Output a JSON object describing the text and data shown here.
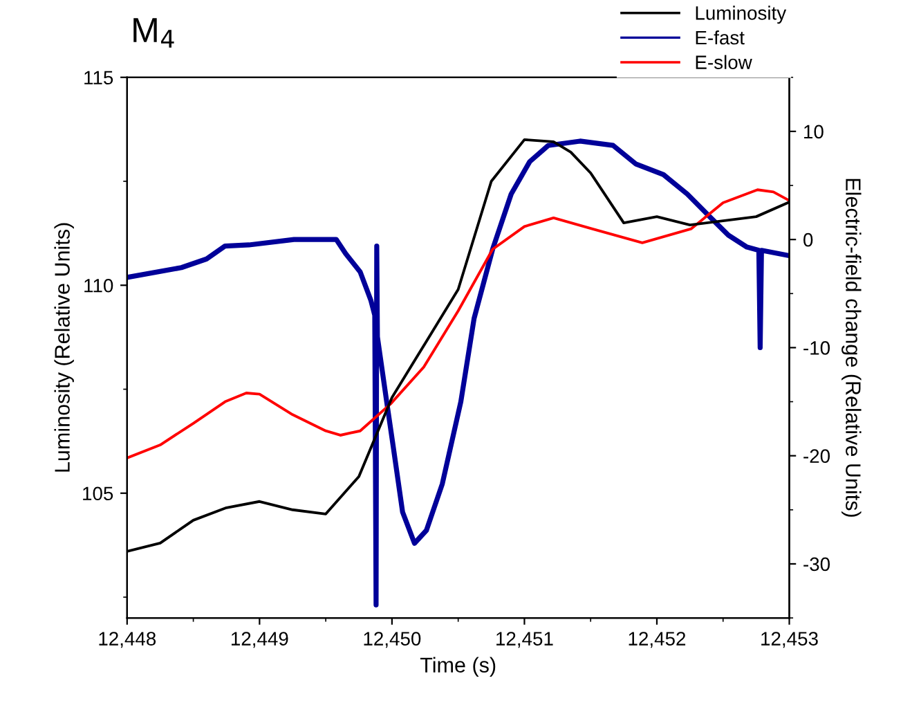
{
  "chart_data": {
    "type": "line",
    "title": "M$_{4}$",
    "xlabel": "Time (s)",
    "ylabel": "Luminosity (Relative Units)",
    "y2label": "Electric-field change (Relative Units)",
    "xlim": [
      12448,
      12453
    ],
    "xticks": [
      {
        "value": 12448,
        "label": "12,448"
      },
      {
        "value": 12449,
        "label": "12,449"
      },
      {
        "value": 12450,
        "label": "12,450"
      },
      {
        "value": 12451,
        "label": "12,451"
      },
      {
        "value": 12452,
        "label": "12,452"
      },
      {
        "value": 12453,
        "label": "12,453"
      }
    ],
    "ylim": [
      102,
      115
    ],
    "yticks": [
      105,
      110,
      115
    ],
    "y2lim": [
      -35,
      15
    ],
    "y2ticks": [
      -30,
      -20,
      -10,
      0,
      10
    ],
    "grid": false,
    "legend": "top right",
    "marker": "none",
    "line_style": "solid",
    "series": [
      {
        "name": "Luminosity",
        "color": "#000000",
        "axis": "y",
        "x": [
          12448.0,
          12448.25,
          12448.5,
          12448.75,
          12449.0,
          12449.25,
          12449.5,
          12449.75,
          12450.0,
          12450.25,
          12450.5,
          12450.75,
          12451.0,
          12451.22,
          12451.35,
          12451.5,
          12451.75,
          12452.0,
          12452.25,
          12452.5,
          12452.75,
          12453.0
        ],
        "values": [
          103.6,
          103.8,
          104.35,
          104.65,
          104.8,
          104.6,
          104.5,
          105.4,
          107.3,
          108.6,
          109.9,
          112.5,
          113.5,
          113.45,
          113.2,
          112.7,
          111.5,
          111.65,
          111.45,
          111.55,
          111.65,
          112.0
        ]
      },
      {
        "name": "E-fast",
        "color": "#000099",
        "axis": "y2",
        "x": [
          12448.0,
          12448.41,
          12448.6,
          12448.74,
          12448.92,
          12449.26,
          12449.58,
          12449.65,
          12449.76,
          12449.84,
          12449.87,
          12449.88,
          12449.885,
          12449.89,
          12449.96,
          12450.01,
          12450.08,
          12450.17,
          12450.26,
          12450.38,
          12450.52,
          12450.62,
          12450.76,
          12450.9,
          12451.04,
          12451.18,
          12451.42,
          12451.67,
          12451.84,
          12452.05,
          12452.23,
          12452.4,
          12452.54,
          12452.68,
          12452.77,
          12452.78,
          12452.79,
          12453.0
        ],
        "values": [
          -3.5,
          -2.6,
          -1.8,
          -0.6,
          -0.5,
          0,
          0,
          -1.3,
          -3,
          -5.6,
          -7,
          -33.8,
          -0.6,
          -9,
          -15,
          -19.2,
          -25.2,
          -28.1,
          -26.9,
          -22.6,
          -15,
          -7.3,
          -0.9,
          4.2,
          7.2,
          8.7,
          9.1,
          8.7,
          7.0,
          6.0,
          4.2,
          2.1,
          0.4,
          -0.7,
          -1,
          -10,
          -1,
          -1.5
        ]
      },
      {
        "name": "E-slow",
        "color": "#ff0000",
        "axis": "y2",
        "x": [
          12448.0,
          12448.25,
          12448.5,
          12448.74,
          12448.9,
          12449.0,
          12449.25,
          12449.5,
          12449.61,
          12449.76,
          12449.99,
          12450.24,
          12450.5,
          12450.76,
          12451.0,
          12451.22,
          12451.51,
          12451.89,
          12452.26,
          12452.5,
          12452.76,
          12452.88,
          12453.0
        ],
        "values": [
          -20.2,
          -19.0,
          -17.0,
          -15.0,
          -14.2,
          -14.3,
          -16.2,
          -17.7,
          -18.1,
          -17.7,
          -15.2,
          -11.8,
          -6.6,
          -0.9,
          1.2,
          2.0,
          1.0,
          -0.3,
          1.0,
          3.4,
          4.6,
          4.4,
          3.6
        ]
      }
    ]
  }
}
